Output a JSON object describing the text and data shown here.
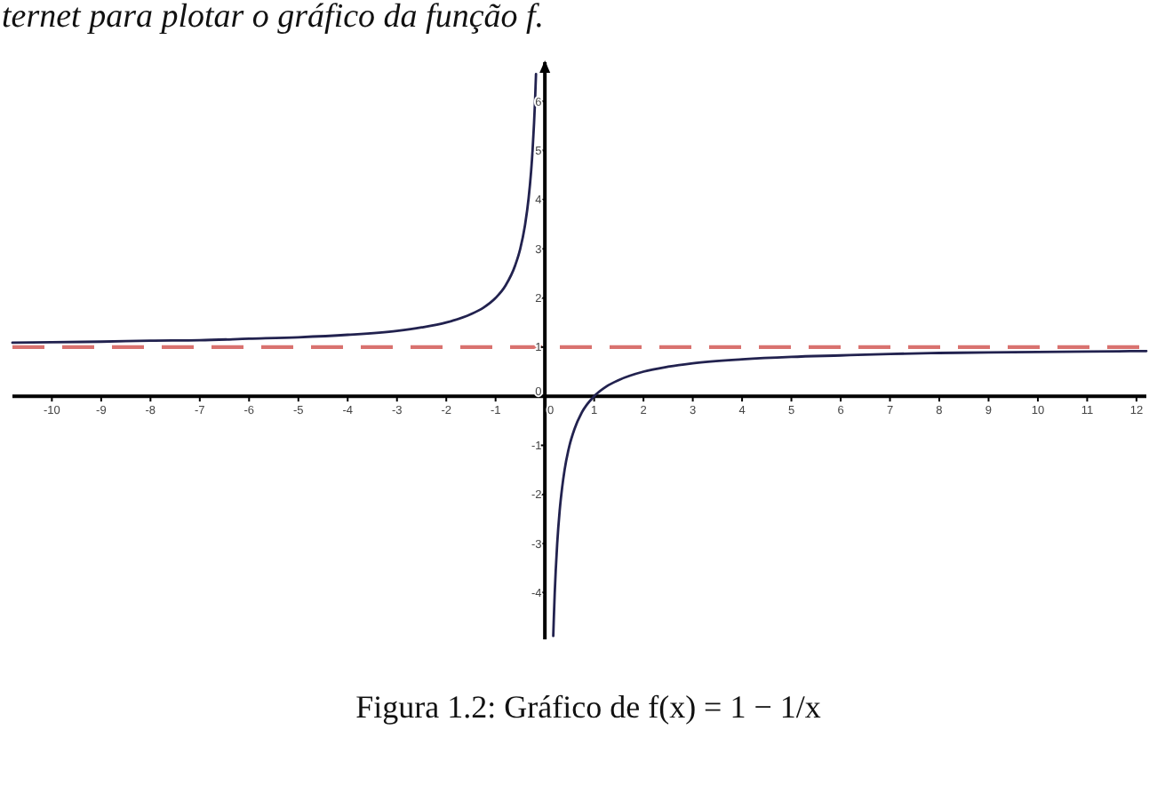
{
  "chart_data": {
    "type": "line",
    "annotations": [
      "ternet para plotar o gráfico da função f.",
      "Figura 1.2: Gráfico de f(x) = 1 − 1/x"
    ],
    "x": [
      -10.8,
      -10,
      -9,
      -8,
      -7,
      -6,
      -5,
      -4,
      -3,
      -2.5,
      -2,
      -1.5,
      -1.25,
      -1,
      -0.8,
      -0.6,
      -0.5,
      -0.4,
      -0.33,
      -0.28,
      -0.25,
      -0.22,
      -0.2,
      -0.18,
      0,
      0.17,
      0.18,
      0.2,
      0.22,
      0.25,
      0.3,
      0.35,
      0.4,
      0.5,
      0.6,
      0.75,
      1,
      1.25,
      1.5,
      2,
      2.5,
      3,
      4,
      5,
      6,
      7,
      8,
      9,
      10,
      11,
      12.2
    ],
    "series": [
      {
        "color": "#22224f",
        "values": [
          1.09,
          1.1,
          1.11,
          1.13,
          1.14,
          1.17,
          1.2,
          1.25,
          1.33,
          1.4,
          1.5,
          1.67,
          1.8,
          2,
          2.25,
          2.67,
          3,
          3.5,
          4.03,
          4.57,
          5,
          5.55,
          6,
          6.56,
          null,
          -4.88,
          -4.56,
          -4,
          -3.55,
          -3,
          -2.33,
          -1.86,
          -1.5,
          -1,
          -0.67,
          -0.33,
          0,
          0.2,
          0.33,
          0.5,
          0.6,
          0.67,
          0.75,
          0.8,
          0.83,
          0.86,
          0.88,
          0.89,
          0.9,
          0.91,
          0.92
        ]
      }
    ],
    "xlim": [
      -10.8,
      12.2
    ],
    "ylim": [
      -4.95,
      6.8
    ],
    "xticks": [
      -10,
      -9,
      -8,
      -7,
      -6,
      -5,
      -4,
      -3,
      -2,
      -1,
      0,
      1,
      2,
      3,
      4,
      5,
      6,
      7,
      8,
      9,
      10,
      11,
      12
    ],
    "yticks": [
      -4,
      -3,
      -2,
      -1,
      0,
      1,
      2,
      3,
      4,
      5,
      6
    ],
    "ref_lines": [
      {
        "axis": "y",
        "value": 1,
        "color": "#d9726f",
        "line_style": "dashed"
      }
    ]
  }
}
